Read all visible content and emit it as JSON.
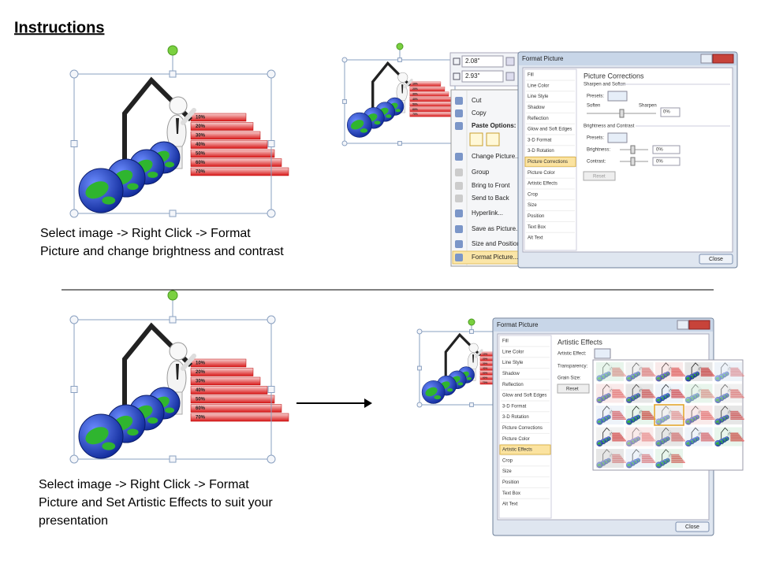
{
  "title": "Instructions",
  "step1": {
    "caption": [
      "Select image -> Right Click -> Format",
      "Picture and change brightness and contrast"
    ]
  },
  "step2": {
    "caption": [
      "Select image -> Right Click -> Format",
      "Picture and Set Artistic Effects to suit your",
      "presentation"
    ]
  },
  "image_labels": [
    "10%",
    "20%",
    "30%",
    "40%",
    "50%",
    "60%",
    "70%"
  ],
  "size_boxes": [
    "2.08\"",
    "2.93\""
  ],
  "context_menu": [
    "Cut",
    "Copy",
    "Paste Options:",
    "Change Picture...",
    "Group",
    "Bring to Front",
    "Send to Back",
    "Hyperlink...",
    "Save as Picture...",
    "Size and Position...",
    "Format Picture..."
  ],
  "dialog_title": "Format Picture",
  "dialog_nav": [
    "Fill",
    "Line Color",
    "Line Style",
    "Shadow",
    "Reflection",
    "Glow and Soft Edges",
    "3-D Format",
    "3-D Rotation",
    "Picture Corrections",
    "Picture Color",
    "Artistic Effects",
    "Crop",
    "Size",
    "Position",
    "Text Box",
    "Alt Text"
  ],
  "close": "Close",
  "reset": "Reset",
  "corrections": {
    "heading": "Picture Corrections",
    "sharpen": "Sharpen and Soften",
    "presets": "Presets:",
    "soften": "Soften",
    "sharpen_label": "Sharpen",
    "zero": "0%",
    "brightness_contrast": "Brightness and Contrast",
    "brightness": "Brightness:",
    "contrast": "Contrast:"
  },
  "artistic": {
    "heading": "Artistic Effects",
    "effect": "Artistic Effect:",
    "transparency": "Transparency:",
    "grain": "Grain Size:"
  }
}
